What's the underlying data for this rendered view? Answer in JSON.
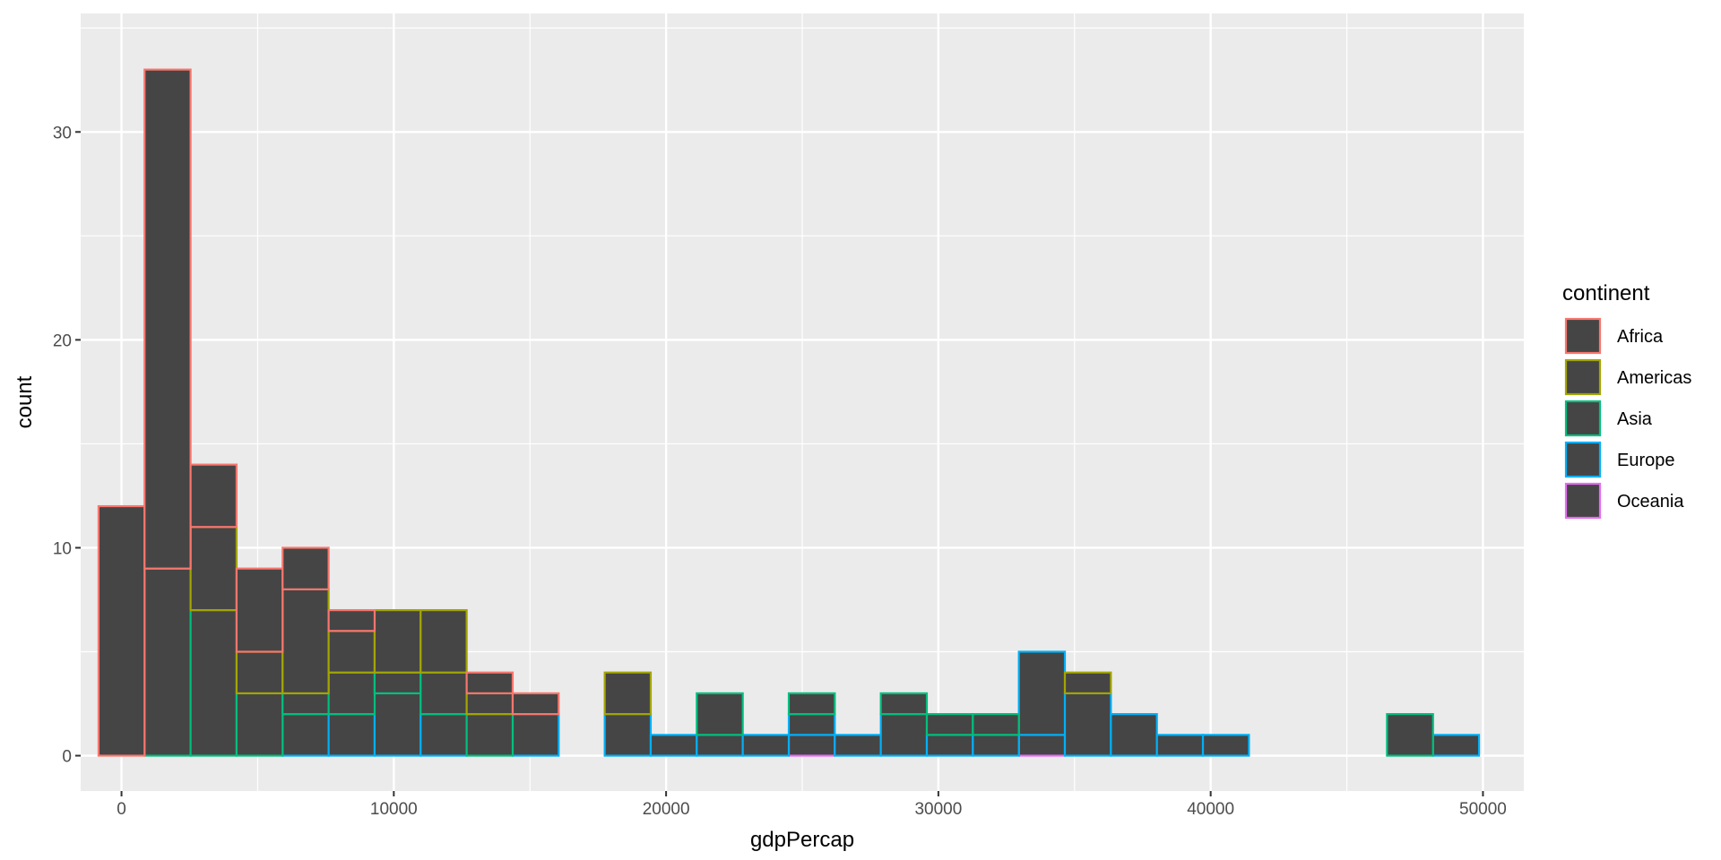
{
  "chart_data": {
    "type": "bar",
    "subtype": "stacked-histogram",
    "xlabel": "gdpPercap",
    "ylabel": "count",
    "xlim": [
      -1500,
      51500
    ],
    "ylim": [
      -1.7,
      35.7
    ],
    "x_ticks": [
      0,
      10000,
      20000,
      30000,
      40000,
      50000
    ],
    "x_tick_labels": [
      "0",
      "10000",
      "20000",
      "30000",
      "40000",
      "50000"
    ],
    "y_ticks": [
      0,
      10,
      20,
      30
    ],
    "y_tick_labels": [
      "0",
      "10",
      "20",
      "30"
    ],
    "grid": true,
    "bar_fill": "#454545",
    "panel_background": "#ebebeb",
    "bin_start": -844,
    "bin_width": 1690,
    "legend": {
      "title": "continent",
      "position": "right"
    },
    "series": [
      {
        "name": "Africa",
        "color": "#F8766D",
        "values": [
          12,
          24,
          3,
          4,
          2,
          1,
          0,
          0,
          1,
          1,
          0,
          0,
          0,
          0,
          0,
          0,
          0,
          0,
          0,
          0,
          0,
          0,
          0,
          0,
          0,
          0,
          0,
          0,
          0,
          0
        ]
      },
      {
        "name": "Americas",
        "color": "#A3A500",
        "values": [
          0,
          0,
          4,
          2,
          5,
          2,
          3,
          3,
          1,
          0,
          0,
          2,
          0,
          0,
          0,
          0,
          0,
          0,
          0,
          0,
          0,
          1,
          0,
          0,
          0,
          0,
          0,
          0,
          0,
          0
        ]
      },
      {
        "name": "Asia",
        "color": "#00BF7D",
        "values": [
          0,
          9,
          7,
          3,
          1,
          2,
          1,
          2,
          2,
          0,
          0,
          0,
          0,
          2,
          0,
          1,
          0,
          1,
          1,
          1,
          0,
          0,
          0,
          0,
          0,
          0,
          0,
          0,
          2,
          0
        ]
      },
      {
        "name": "Europe",
        "color": "#00B0F6",
        "values": [
          0,
          0,
          0,
          0,
          2,
          2,
          3,
          2,
          0,
          2,
          0,
          2,
          1,
          1,
          1,
          1,
          1,
          2,
          1,
          1,
          4,
          3,
          2,
          1,
          1,
          0,
          0,
          0,
          0,
          1
        ]
      },
      {
        "name": "Oceania",
        "color": "#E76BF3",
        "values": [
          0,
          0,
          0,
          0,
          0,
          0,
          0,
          0,
          0,
          0,
          0,
          0,
          0,
          0,
          0,
          1,
          0,
          0,
          0,
          0,
          1,
          0,
          0,
          0,
          0,
          0,
          0,
          0,
          0,
          0
        ]
      }
    ]
  }
}
